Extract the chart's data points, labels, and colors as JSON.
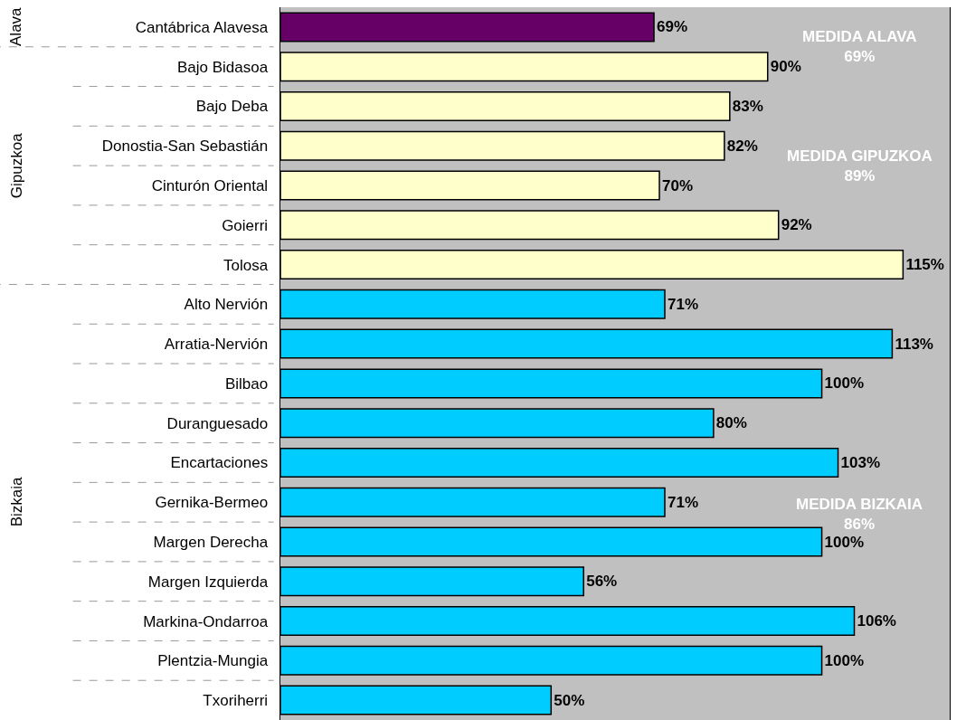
{
  "chart_data": {
    "type": "bar",
    "orientation": "horizontal",
    "value_labels": [
      "69%",
      "90%",
      "83%",
      "82%",
      "70%",
      "92%",
      "115%",
      "71%",
      "113%",
      "100%",
      "80%",
      "103%",
      "71%",
      "100%",
      "56%",
      "106%",
      "100%",
      "50%"
    ],
    "categories": [
      "Cantábrica Alavesa",
      "Bajo Bidasoa",
      "Bajo Deba",
      "Donostia-San Sebastián",
      "Cinturón Oriental",
      "Goierri",
      "Tolosa",
      "Alto Nervión",
      "Arratia-Nervión",
      "Bilbao",
      "Duranguesado",
      "Encartaciones",
      "Gernika-Bermeo",
      "Margen Derecha",
      "Margen Izquierda",
      "Markina-Ondarroa",
      "Plentzia-Mungia",
      "Txoriherri"
    ],
    "values": [
      69,
      90,
      83,
      82,
      70,
      92,
      115,
      71,
      113,
      100,
      80,
      103,
      71,
      100,
      56,
      106,
      100,
      50
    ],
    "colors": [
      "#660066",
      "#ffffcc",
      "#ffffcc",
      "#ffffcc",
      "#ffffcc",
      "#ffffcc",
      "#ffffcc",
      "#00ccff",
      "#00ccff",
      "#00ccff",
      "#00ccff",
      "#00ccff",
      "#00ccff",
      "#00ccff",
      "#00ccff",
      "#00ccff",
      "#00ccff",
      "#00ccff"
    ],
    "annotations": [
      "Alava",
      "Gipuzkoa",
      "Bizkaia",
      "MEDIDA ALAVA\n69%",
      "MEDIDA GIPUZKOA\n89%",
      "MEDIDA BIZKAIA\n86%"
    ]
  }
}
